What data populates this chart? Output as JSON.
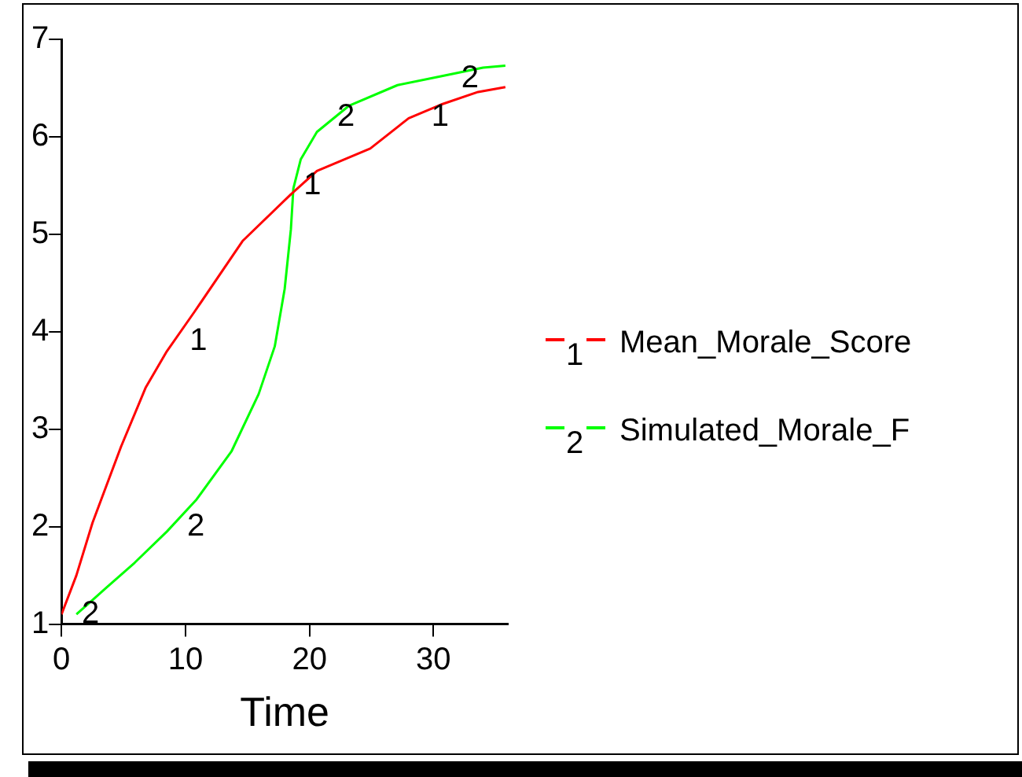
{
  "chart_data": {
    "type": "line",
    "xlabel": "Time",
    "xlim": [
      0,
      36
    ],
    "xticks": [
      0,
      10,
      20,
      30
    ],
    "ylim": [
      1,
      7
    ],
    "yticks": [
      1,
      2,
      3,
      4,
      5,
      6,
      7
    ],
    "grid": false,
    "legend": "right",
    "marker": "none",
    "series": [
      {
        "name": "Mean_Morale_Score",
        "color": "#ff0000",
        "x": [
          0,
          0.3,
          1.2,
          2.5,
          4.8,
          6.8,
          8.5,
          10.7,
          14.6,
          18.5,
          20.6,
          24.9,
          28,
          30.6,
          33.6,
          35.8
        ],
        "values": [
          1.1,
          1.2,
          1.5,
          2.04,
          2.82,
          3.43,
          3.8,
          4.2,
          4.93,
          5.41,
          5.65,
          5.88,
          6.19,
          6.33,
          6.46,
          6.51
        ]
      },
      {
        "name": "Simulated_Morale_F",
        "color": "#00ff00",
        "x": [
          1.2,
          3.5,
          5.9,
          8.5,
          10.9,
          13.7,
          15.9,
          17.2,
          18,
          18.5,
          18.7,
          19.3,
          20.6,
          23.2,
          27.1,
          30.6,
          34,
          35.8
        ],
        "values": [
          1.1,
          1.36,
          1.63,
          1.95,
          2.28,
          2.77,
          3.36,
          3.85,
          4.44,
          5.05,
          5.47,
          5.77,
          6.05,
          6.32,
          6.53,
          6.62,
          6.71,
          6.73
        ]
      }
    ],
    "annotations": [
      {
        "text": "1",
        "x": 9.9,
        "y": 3.9
      },
      {
        "text": "1",
        "x": 19.1,
        "y": 5.5
      },
      {
        "text": "1",
        "x": 29.4,
        "y": 6.2
      },
      {
        "text": "2",
        "x": 1.2,
        "y": 1.1
      },
      {
        "text": "2",
        "x": 9.7,
        "y": 2
      },
      {
        "text": "2",
        "x": 21.8,
        "y": 6.2
      },
      {
        "text": "2",
        "x": 31.8,
        "y": 6.6
      }
    ]
  }
}
